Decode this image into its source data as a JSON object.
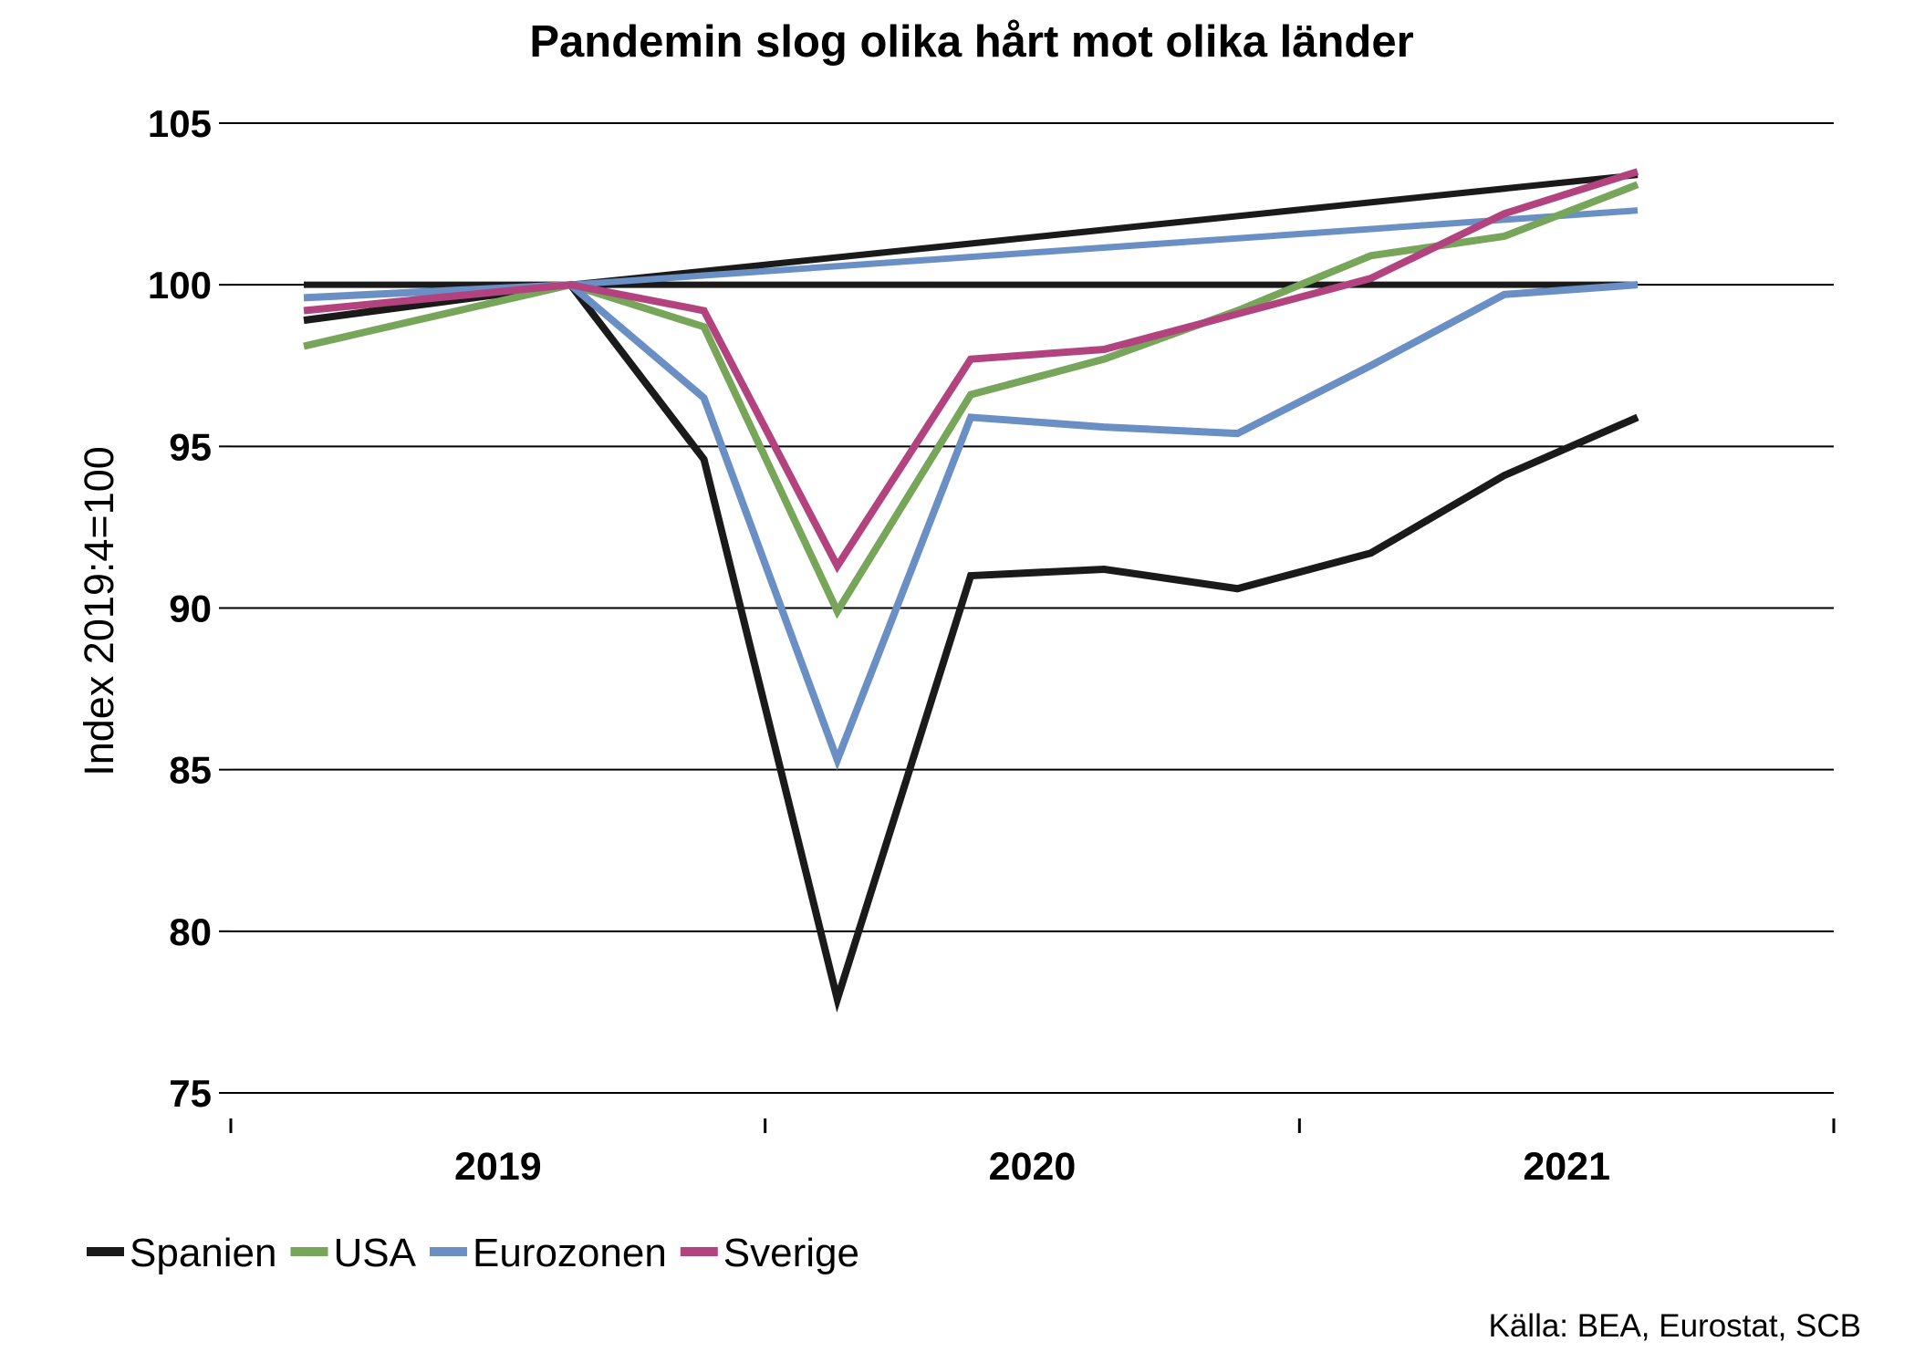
{
  "chart_data": {
    "type": "line",
    "title": "Pandemin slog olika hårt mot olika länder",
    "ylabel": "Index 2019:4=100",
    "source": "Källa: BEA, Eurostat, SCB",
    "ylim": [
      75,
      105
    ],
    "yticks": [
      "75",
      "80",
      "85",
      "90",
      "95",
      "100",
      "105"
    ],
    "year_labels": [
      "2019",
      "2020",
      "2021"
    ],
    "x": [
      "2019:2",
      "2019:3",
      "2019:4",
      "2020:1",
      "2020:2",
      "2020:3",
      "2020:4",
      "2021:1",
      "2021:2",
      "2021:3",
      "2021:4"
    ],
    "grid": true,
    "legend_position": "bottom",
    "series": [
      {
        "name": "Spanien",
        "color": "#1a1a1a",
        "values": [
          98.9,
          null,
          100.0,
          94.6,
          77.9,
          91.0,
          91.2,
          90.6,
          91.7,
          94.1,
          95.9
        ]
      },
      {
        "name": "USA",
        "color": "#77a55a",
        "values": [
          98.1,
          null,
          100.0,
          98.7,
          89.9,
          96.6,
          97.7,
          99.2,
          100.9,
          101.5,
          103.1
        ]
      },
      {
        "name": "Eurozonen",
        "color": "#6a8fc5",
        "values": [
          99.6,
          null,
          100.0,
          96.5,
          85.3,
          95.9,
          95.6,
          95.4,
          97.5,
          99.7,
          100.0
        ]
      },
      {
        "name": "Sverige",
        "color": "#b3437f",
        "values": [
          99.2,
          null,
          100.0,
          99.2,
          91.3,
          97.7,
          98.0,
          99.1,
          100.2,
          102.2,
          103.5
        ]
      }
    ],
    "reference_lines": [
      {
        "color": "#1a1a1a",
        "points": [
          [
            "2019:2",
            100.0
          ],
          [
            "2021:4",
            100.0
          ]
        ]
      },
      {
        "color": "#1a1a1a",
        "points": [
          [
            "2019:4",
            100.0
          ],
          [
            "2021:4",
            103.4
          ]
        ]
      },
      {
        "color": "#6a8fc5",
        "points": [
          [
            "2019:4",
            100.0
          ],
          [
            "2021:4",
            102.3
          ]
        ]
      }
    ]
  }
}
